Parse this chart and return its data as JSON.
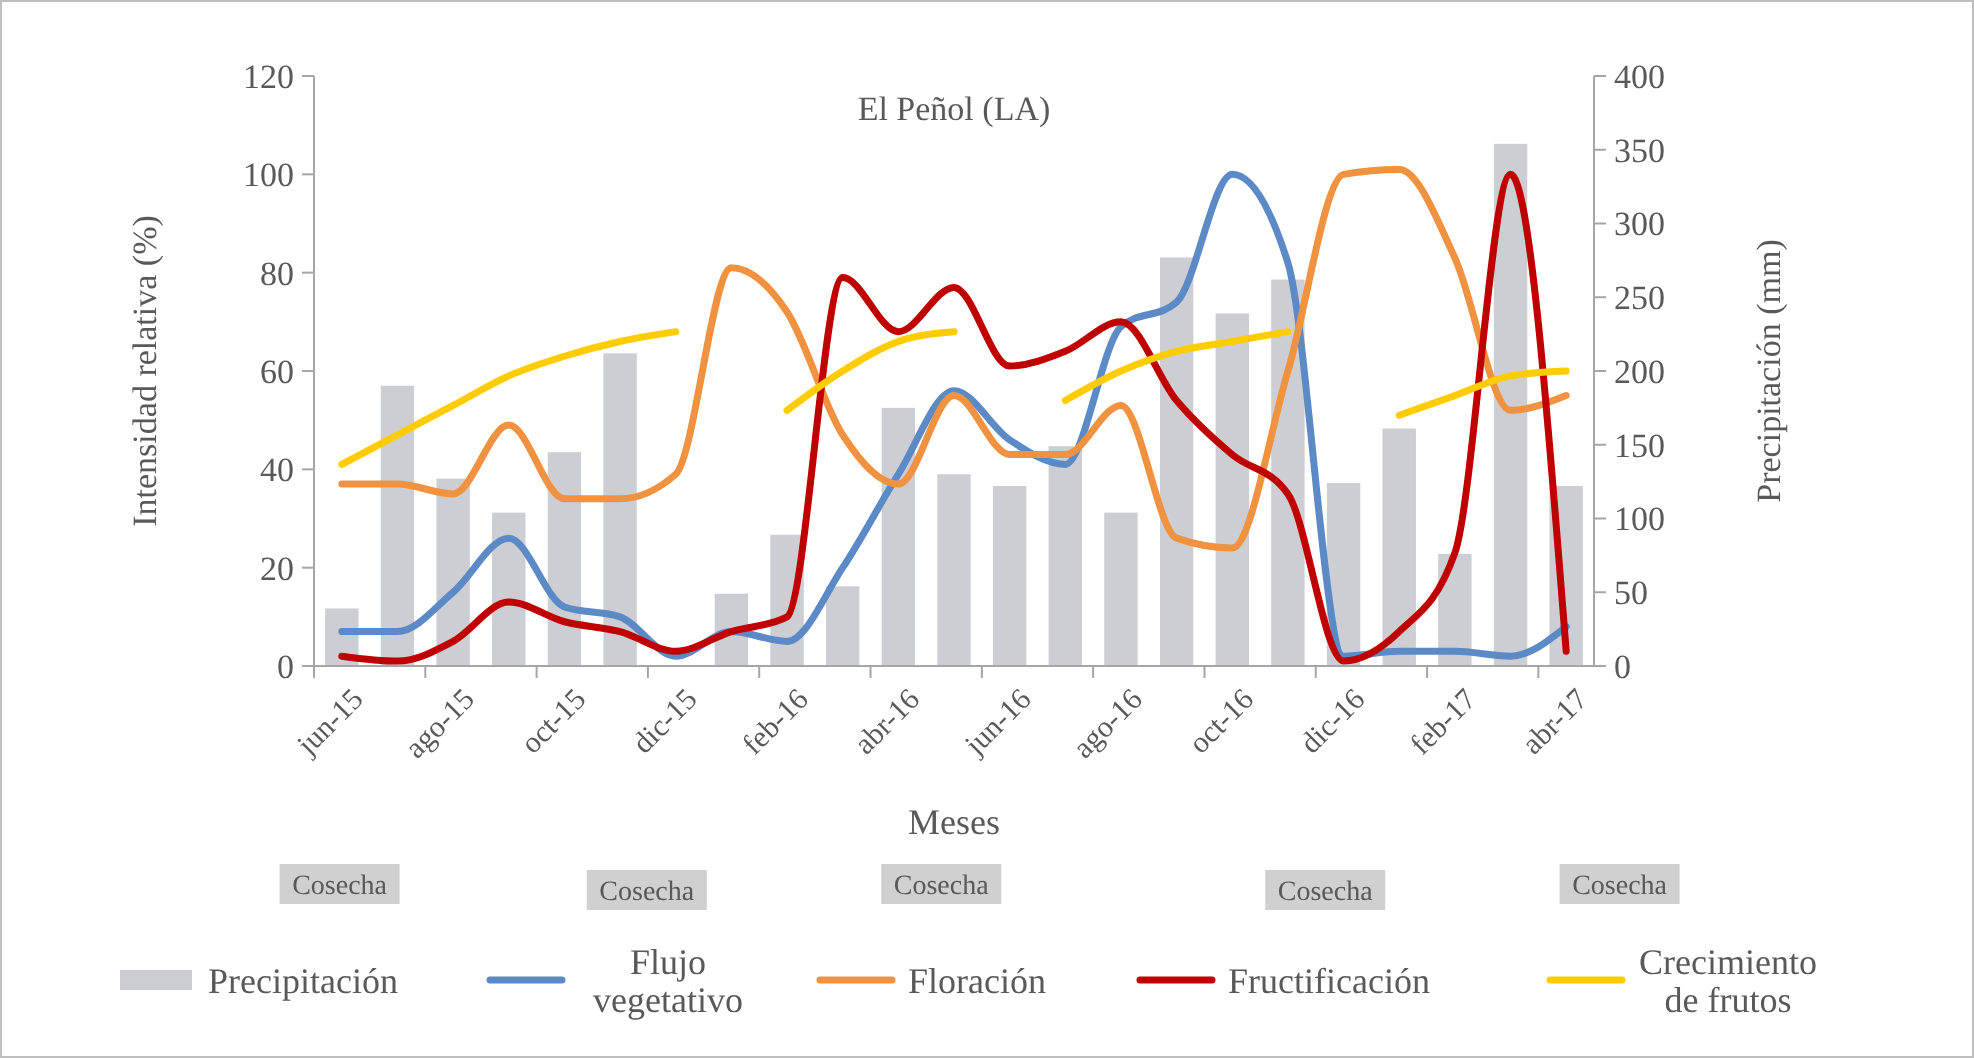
{
  "chart_data": {
    "type": "line",
    "title": "El Peñol (LA)",
    "xlabel": "Meses",
    "ylabel": "Intensidad relativa (%)",
    "y2label": "Precipitación (mm)",
    "categories": [
      "jun-15",
      null,
      "ago-15",
      null,
      "oct-15",
      null,
      "dic-15",
      null,
      "feb-16",
      null,
      "abr-16",
      null,
      "jun-16",
      null,
      "ago-16",
      null,
      "oct-16",
      null,
      "dic-16",
      null,
      "feb-17",
      null,
      "abr-17"
    ],
    "ylim": [
      0,
      120
    ],
    "yticks": [
      0,
      20,
      40,
      60,
      80,
      100,
      120
    ],
    "y2lim": [
      0,
      400
    ],
    "y2ticks": [
      0,
      50,
      100,
      150,
      200,
      250,
      300,
      350,
      400
    ],
    "legend": "bottom",
    "grid": false,
    "annotations": [
      "Cosecha",
      "Cosecha",
      "Cosecha",
      "Cosecha",
      "Cosecha"
    ],
    "series": [
      {
        "name": "Precipitación",
        "type": "bar",
        "axis": "y2",
        "color": "#cdced3",
        "values": [
          39,
          190,
          127,
          104,
          145,
          212,
          null,
          49,
          89,
          54,
          175,
          130,
          122,
          149,
          104,
          277,
          239,
          262,
          124,
          161,
          76,
          354,
          122
        ]
      },
      {
        "name": "Flujo vegetativo",
        "color": "#5b8ac6",
        "values": [
          7,
          7,
          15,
          26,
          12,
          10,
          2,
          7,
          5,
          20,
          39,
          56,
          46,
          41,
          69,
          74,
          100,
          82,
          2,
          3,
          3,
          2,
          8
        ]
      },
      {
        "name": "Floración",
        "color": "#f0923f",
        "values": [
          37,
          37,
          35,
          49,
          34,
          34,
          39,
          81,
          72,
          47,
          37,
          55,
          43,
          43,
          53,
          26,
          24,
          60,
          100,
          101,
          83,
          52,
          55
        ]
      },
      {
        "name": "Fructificación",
        "color": "#c00000",
        "values": [
          2,
          1,
          5,
          13,
          9,
          7,
          3,
          7,
          10,
          79,
          68,
          77,
          61,
          64,
          70,
          54,
          43,
          35,
          1,
          7,
          23,
          100,
          3
        ]
      },
      {
        "name": "Crecimiento de frutos",
        "color": "#ffcc00",
        "values": [
          41,
          47,
          53,
          59,
          63,
          66,
          68,
          null,
          52,
          60,
          66,
          68,
          null,
          54,
          60,
          64,
          66,
          68,
          null,
          51,
          55,
          59,
          60
        ]
      }
    ]
  }
}
